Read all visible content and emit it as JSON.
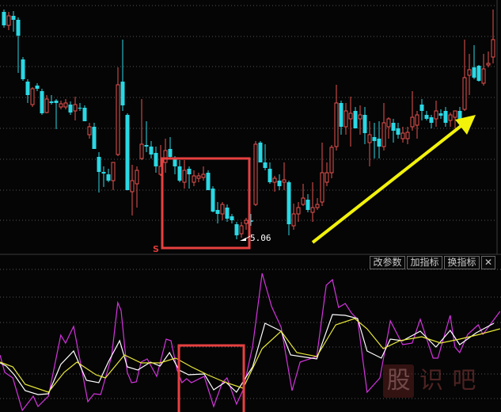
{
  "toolbar": {
    "modify_params": "改参数",
    "add_indicator": "加指标",
    "switch_indicator": "换指标",
    "close": "✕"
  },
  "watermark": "股识吧",
  "colors": {
    "background": "#050505",
    "up": "#e8524f",
    "down": "#2ad8e4",
    "grid": "#555555",
    "box": "#e84040",
    "arrow": "#f2f20a",
    "line1": "#d633e0",
    "line2": "#ffffff",
    "line3": "#e8e83a"
  },
  "chart_data": [
    {
      "type": "candlestick",
      "annotations": {
        "low_label": "5.06",
        "signal_marker": "S"
      },
      "ohlc": [
        [
          7.93,
          7.96,
          7.73,
          7.76
        ],
        [
          7.76,
          7.93,
          7.7,
          7.88
        ],
        [
          7.88,
          7.94,
          7.68,
          7.83
        ],
        [
          7.83,
          7.86,
          7.16,
          7.63
        ],
        [
          7.33,
          7.36,
          7.06,
          7.08
        ],
        [
          7.05,
          7.08,
          6.78,
          6.88
        ],
        [
          6.76,
          6.98,
          6.73,
          6.96
        ],
        [
          7.0,
          7.03,
          6.93,
          6.96
        ],
        [
          6.93,
          6.96,
          6.63,
          6.65
        ],
        [
          6.66,
          6.88,
          6.65,
          6.83
        ],
        [
          6.8,
          6.88,
          6.76,
          6.78
        ],
        [
          6.81,
          6.83,
          6.45,
          6.78
        ],
        [
          6.73,
          6.81,
          6.7,
          6.77
        ],
        [
          6.73,
          6.83,
          6.7,
          6.78
        ],
        [
          6.76,
          6.8,
          6.63,
          6.66
        ],
        [
          6.68,
          6.86,
          6.56,
          6.76
        ],
        [
          6.72,
          6.78,
          6.68,
          6.71
        ],
        [
          6.72,
          6.75,
          6.55,
          6.55
        ],
        [
          6.38,
          6.53,
          6.33,
          6.48
        ],
        [
          6.48,
          6.53,
          6.2,
          6.2
        ],
        [
          6.1,
          6.16,
          5.65,
          5.91
        ],
        [
          5.91,
          5.98,
          5.72,
          5.89
        ],
        [
          5.88,
          5.95,
          5.78,
          5.8
        ],
        [
          5.8,
          6.03,
          5.68,
          6.03
        ],
        [
          6.13,
          7.23,
          6.11,
          7.01
        ],
        [
          7.05,
          7.58,
          6.68,
          6.75
        ],
        [
          6.63,
          6.65,
          5.68,
          5.68
        ],
        [
          5.66,
          6.0,
          5.36,
          5.8
        ],
        [
          5.76,
          5.98,
          5.46,
          5.93
        ],
        [
          6.08,
          6.83,
          6.06,
          6.26
        ],
        [
          6.25,
          6.55,
          6.16,
          6.23
        ],
        [
          6.23,
          6.3,
          6.08,
          6.13
        ],
        [
          6.15,
          6.23,
          5.9,
          5.98
        ],
        [
          5.88,
          6.25,
          5.86,
          5.98
        ],
        [
          6.03,
          6.33,
          5.9,
          6.18
        ],
        [
          6.2,
          6.35,
          6.08,
          6.1
        ],
        [
          6.08,
          6.11,
          5.88,
          5.98
        ],
        [
          5.98,
          6.06,
          5.78,
          5.8
        ],
        [
          5.78,
          6.06,
          5.7,
          5.93
        ],
        [
          5.95,
          5.98,
          5.7,
          5.88
        ],
        [
          5.78,
          5.93,
          5.73,
          5.86
        ],
        [
          5.83,
          5.9,
          5.78,
          5.86
        ],
        [
          5.84,
          5.98,
          5.8,
          5.88
        ],
        [
          5.9,
          5.93,
          5.68,
          5.68
        ],
        [
          5.7,
          5.73,
          5.4,
          5.41
        ],
        [
          5.43,
          5.53,
          5.26,
          5.38
        ],
        [
          5.38,
          5.53,
          5.3,
          5.5
        ],
        [
          5.46,
          5.5,
          5.28,
          5.32
        ],
        [
          5.35,
          5.38,
          5.26,
          5.3
        ],
        [
          5.25,
          5.28,
          5.06,
          5.11
        ],
        [
          5.13,
          5.28,
          5.08,
          5.23
        ],
        [
          5.26,
          5.33,
          5.18,
          5.3
        ],
        [
          5.3,
          5.38,
          5.23,
          5.28
        ],
        [
          5.5,
          6.3,
          5.48,
          6.26
        ],
        [
          6.28,
          6.3,
          6.03,
          6.03
        ],
        [
          6.03,
          6.26,
          5.93,
          5.96
        ],
        [
          5.95,
          6.03,
          5.76,
          5.78
        ],
        [
          5.78,
          5.86,
          5.66,
          5.83
        ],
        [
          5.8,
          5.88,
          5.68,
          5.73
        ],
        [
          5.78,
          6.03,
          5.68,
          5.81
        ],
        [
          5.78,
          5.8,
          5.11,
          5.25
        ],
        [
          5.23,
          5.51,
          5.18,
          5.38
        ],
        [
          5.38,
          5.53,
          5.28,
          5.46
        ],
        [
          5.5,
          5.76,
          5.48,
          5.58
        ],
        [
          5.56,
          5.63,
          5.4,
          5.43
        ],
        [
          5.4,
          5.78,
          5.28,
          5.46
        ],
        [
          5.46,
          5.58,
          5.43,
          5.5
        ],
        [
          5.53,
          6.28,
          5.48,
          5.9
        ],
        [
          5.78,
          6.03,
          5.73,
          5.9
        ],
        [
          5.9,
          6.25,
          5.83,
          6.22
        ],
        [
          6.23,
          7.01,
          6.18,
          6.78
        ],
        [
          6.78,
          6.81,
          6.38,
          6.48
        ],
        [
          6.48,
          6.78,
          6.38,
          6.68
        ],
        [
          6.58,
          6.86,
          6.23,
          6.65
        ],
        [
          6.68,
          6.73,
          6.46,
          6.46
        ],
        [
          6.58,
          6.75,
          6.38,
          6.63
        ],
        [
          6.63,
          6.73,
          6.26,
          6.4
        ],
        [
          6.28,
          6.55,
          5.98,
          6.38
        ],
        [
          6.35,
          6.53,
          6.08,
          6.3
        ],
        [
          6.33,
          6.55,
          6.08,
          6.23
        ],
        [
          6.23,
          6.78,
          6.18,
          6.53
        ],
        [
          6.48,
          6.6,
          6.33,
          6.58
        ],
        [
          6.53,
          6.58,
          6.28,
          6.43
        ],
        [
          6.46,
          6.53,
          6.33,
          6.38
        ],
        [
          6.33,
          6.48,
          6.28,
          6.4
        ],
        [
          6.33,
          6.48,
          6.26,
          6.41
        ],
        [
          6.48,
          6.93,
          6.43,
          6.6
        ],
        [
          6.5,
          6.68,
          6.33,
          6.63
        ],
        [
          6.76,
          6.83,
          6.56,
          6.68
        ],
        [
          6.63,
          6.68,
          6.56,
          6.58
        ],
        [
          6.6,
          6.63,
          6.46,
          6.53
        ],
        [
          6.58,
          6.81,
          6.48,
          6.68
        ],
        [
          6.65,
          6.7,
          6.58,
          6.62
        ],
        [
          6.68,
          6.73,
          6.48,
          6.53
        ],
        [
          6.56,
          6.66,
          6.48,
          6.63
        ],
        [
          6.6,
          6.68,
          6.46,
          6.68
        ],
        [
          6.68,
          6.73,
          6.53,
          6.58
        ],
        [
          6.7,
          7.58,
          6.68,
          7.1
        ],
        [
          7.13,
          7.4,
          6.88,
          7.2
        ],
        [
          7.23,
          7.51,
          7.08,
          7.1
        ],
        [
          7.25,
          7.26,
          7.05,
          7.06
        ],
        [
          7.03,
          7.4,
          7.0,
          7.21
        ],
        [
          7.26,
          7.43,
          7.23,
          7.28
        ],
        [
          7.36,
          7.96,
          7.28,
          7.58
        ]
      ],
      "grid": true
    },
    {
      "type": "line",
      "grid": true,
      "series": [
        {
          "color": "#d633e0",
          "points": [
            [
              0,
              2.7
            ],
            [
              1,
              0.5
            ],
            [
              2.7,
              -0.2
            ],
            [
              4.7,
              -4.3
            ],
            [
              7,
              -2.5
            ],
            [
              8,
              -3.8
            ],
            [
              10.2,
              -2.5
            ],
            [
              12.8,
              5.2
            ],
            [
              13.8,
              4.2
            ],
            [
              15.5,
              6.3
            ],
            [
              18.5,
              -3.2
            ],
            [
              19.8,
              -2.2
            ],
            [
              21.2,
              -2.3
            ],
            [
              22.2,
              -0.2
            ],
            [
              23.5,
              2.5
            ],
            [
              24.8,
              9.3
            ],
            [
              25.5,
              8.3
            ],
            [
              26.8,
              0.5
            ],
            [
              27.7,
              -0.8
            ],
            [
              28.7,
              -0.7
            ],
            [
              29.7,
              1.8
            ],
            [
              31,
              2.2
            ],
            [
              33,
              0
            ],
            [
              35,
              4.7
            ],
            [
              36,
              4.5
            ],
            [
              37.3,
              0.8
            ],
            [
              38.3,
              -0.8
            ],
            [
              39.3,
              -0.3
            ],
            [
              40.3,
              -0.8
            ],
            [
              43,
              0
            ],
            [
              45,
              -3.8
            ],
            [
              46.8,
              -0.8
            ],
            [
              47.8,
              -0.2
            ],
            [
              49.8,
              -3.5
            ],
            [
              51.2,
              -1.7
            ],
            [
              53.2,
              3.8
            ],
            [
              55.2,
              13
            ],
            [
              57.2,
              8.8
            ],
            [
              59.2,
              6.2
            ],
            [
              61.5,
              -1.8
            ],
            [
              63.2,
              1.8
            ],
            [
              66.7,
              2.5
            ],
            [
              68.7,
              11.5
            ],
            [
              70,
              12.2
            ],
            [
              71.3,
              8.7
            ],
            [
              72.7,
              9.2
            ],
            [
              74,
              8
            ],
            [
              75.3,
              7.2
            ],
            [
              77.3,
              -2
            ],
            [
              80,
              -0.2
            ],
            [
              82.2,
              7
            ],
            [
              84.8,
              4
            ],
            [
              86.8,
              4.2
            ],
            [
              88.5,
              7.2
            ],
            [
              91.2,
              2.3
            ],
            [
              92.2,
              2.3
            ],
            [
              94.8,
              7.7
            ],
            [
              95.8,
              3.7
            ],
            [
              96.8,
              3
            ],
            [
              98.5,
              5.3
            ],
            [
              100.7,
              6.5
            ],
            [
              101.7,
              5.3
            ],
            [
              105.3,
              8.2
            ]
          ]
        },
        {
          "color": "#ffffff",
          "points": [
            [
              0,
              1.7
            ],
            [
              1.3,
              1.3
            ],
            [
              3,
              0.2
            ],
            [
              5.3,
              -1.8
            ],
            [
              8,
              -2.3
            ],
            [
              10.2,
              -2.2
            ],
            [
              12.8,
              1.5
            ],
            [
              15.5,
              3.2
            ],
            [
              18.2,
              -0.5
            ],
            [
              20.8,
              -0.8
            ],
            [
              22.8,
              1.8
            ],
            [
              25.2,
              4.5
            ],
            [
              26.8,
              1.2
            ],
            [
              29,
              0.8
            ],
            [
              31.7,
              1.8
            ],
            [
              33.7,
              1.3
            ],
            [
              35.7,
              3
            ],
            [
              37.7,
              0.8
            ],
            [
              39.7,
              0.2
            ],
            [
              43,
              0.3
            ],
            [
              45,
              -1.7
            ],
            [
              47.5,
              -0.7
            ],
            [
              49.8,
              -2
            ],
            [
              53.2,
              1.2
            ],
            [
              55.8,
              6.7
            ],
            [
              59.2,
              5.7
            ],
            [
              61.2,
              2.7
            ],
            [
              66.7,
              2.2
            ],
            [
              70,
              7.8
            ],
            [
              72.7,
              7.7
            ],
            [
              75.3,
              7.3
            ],
            [
              77.3,
              3.2
            ],
            [
              80.3,
              2.3
            ],
            [
              82.2,
              4.7
            ],
            [
              84.8,
              4.5
            ],
            [
              88.5,
              5.7
            ],
            [
              91.8,
              3.7
            ],
            [
              94.8,
              5.8
            ],
            [
              96.8,
              4
            ],
            [
              100.3,
              5.5
            ],
            [
              104,
              6.7
            ]
          ]
        },
        {
          "color": "#e8e83a",
          "points": [
            [
              0,
              1.8
            ],
            [
              2.7,
              1.2
            ],
            [
              5.3,
              -1
            ],
            [
              10.2,
              -2
            ],
            [
              13.5,
              0.5
            ],
            [
              16.2,
              1.8
            ],
            [
              20.2,
              0.2
            ],
            [
              22.2,
              -0.2
            ],
            [
              26.2,
              2.7
            ],
            [
              29.7,
              1.7
            ],
            [
              33.7,
              1.7
            ],
            [
              37,
              2.3
            ],
            [
              40.3,
              1.2
            ],
            [
              43.7,
              0.2
            ],
            [
              47.2,
              -0.7
            ],
            [
              51.2,
              -1.5
            ],
            [
              55.2,
              3.5
            ],
            [
              59.2,
              5.7
            ],
            [
              62.5,
              3
            ],
            [
              66.7,
              2.5
            ],
            [
              70.7,
              6.5
            ],
            [
              74.7,
              7.3
            ],
            [
              77.3,
              6
            ],
            [
              80.7,
              3.5
            ],
            [
              84.2,
              4.5
            ],
            [
              88.8,
              5
            ],
            [
              92.8,
              4.2
            ],
            [
              96.8,
              4.7
            ],
            [
              101,
              5.3
            ],
            [
              105.3,
              6
            ]
          ]
        }
      ]
    }
  ]
}
